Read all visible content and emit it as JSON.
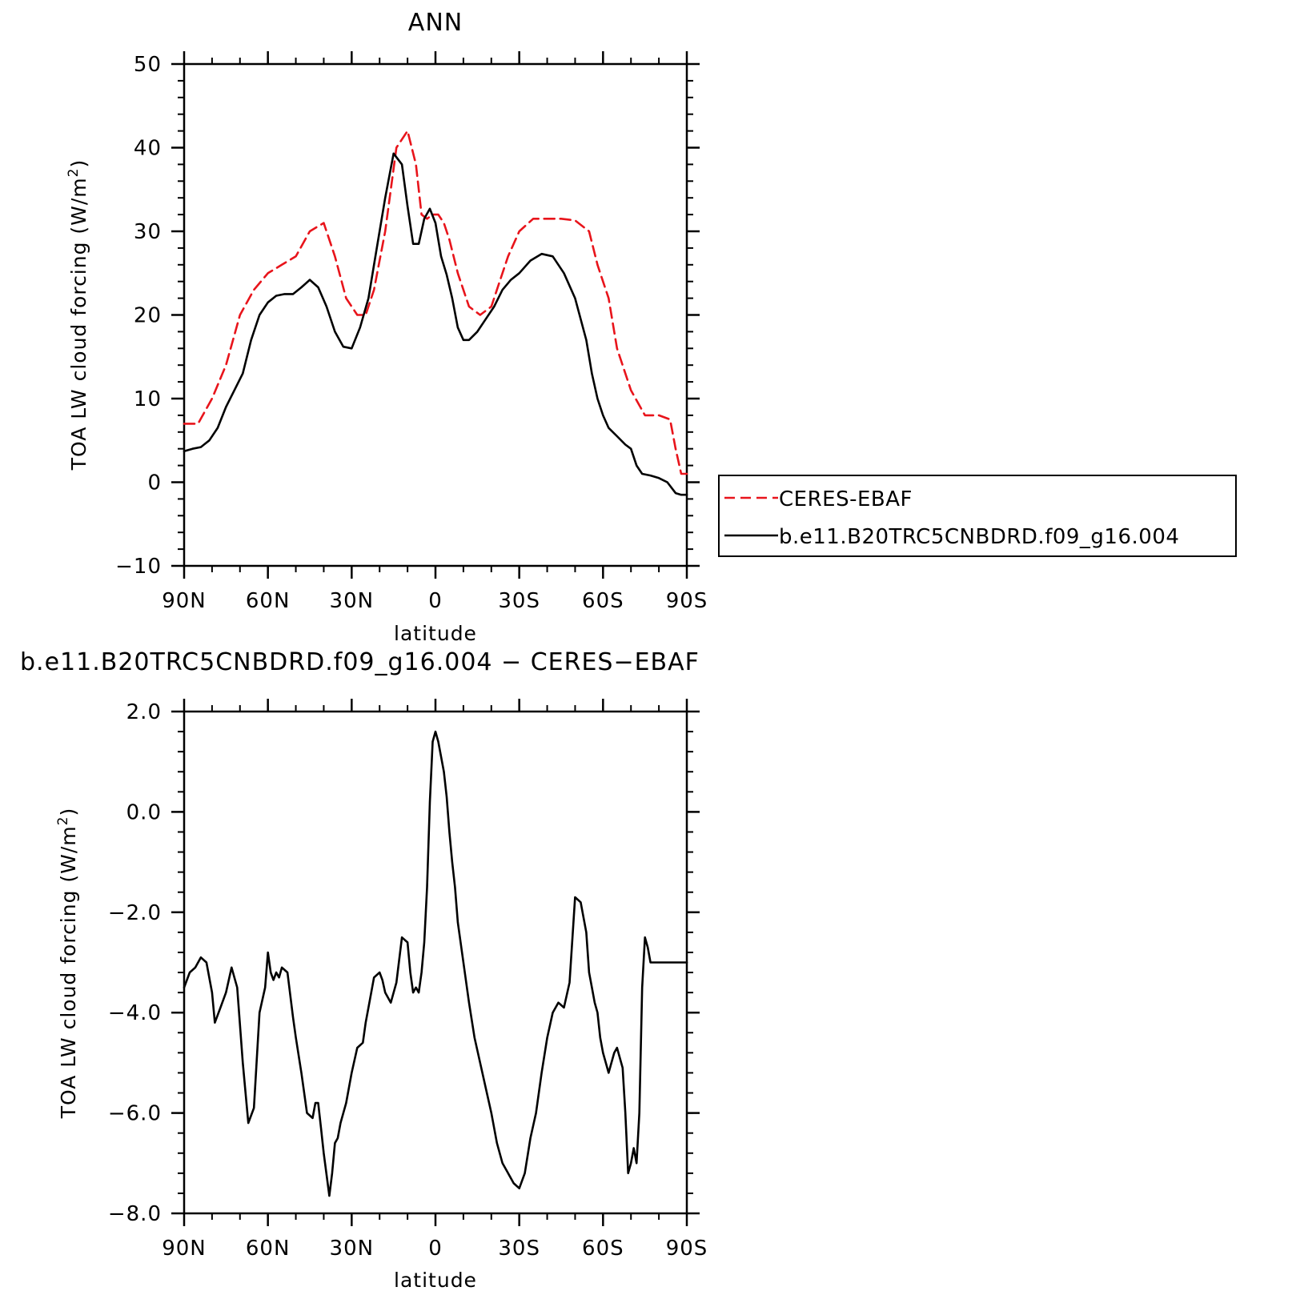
{
  "chart_data": [
    {
      "type": "line",
      "title": "ANN",
      "xlabel": "latitude",
      "ylabel": "TOA LW cloud forcing (W/m²)",
      "ylabel_parts": {
        "base": "TOA LW cloud forcing (W/m",
        "sup": "2",
        "end": ")"
      },
      "xlim": [
        90,
        -90
      ],
      "ylim": [
        -10,
        50
      ],
      "x_ticks": [
        {
          "value": 90,
          "label": "90N"
        },
        {
          "value": 60,
          "label": "60N"
        },
        {
          "value": 30,
          "label": "30N"
        },
        {
          "value": 0,
          "label": "0"
        },
        {
          "value": -30,
          "label": "30S"
        },
        {
          "value": -60,
          "label": "60S"
        },
        {
          "value": -90,
          "label": "90S"
        }
      ],
      "x_minor_step": 10,
      "y_ticks": [
        {
          "value": 50,
          "label": "50"
        },
        {
          "value": 40,
          "label": "40"
        },
        {
          "value": 30,
          "label": "30"
        },
        {
          "value": 20,
          "label": "20"
        },
        {
          "value": 10,
          "label": "10"
        },
        {
          "value": 0,
          "label": "0"
        },
        {
          "value": -10,
          "label": "−10"
        }
      ],
      "y_minor_step": 2,
      "grid": false,
      "legend_position": "right, outside the plot",
      "series": [
        {
          "name": "CERES-EBAF",
          "color": "#e8141b",
          "dash": "dashed",
          "x": [
            90,
            85,
            80,
            75,
            70,
            65,
            60,
            55,
            50,
            45,
            40,
            36,
            32,
            28,
            25,
            22,
            18,
            14,
            10,
            7,
            5,
            3,
            1,
            -1,
            -3,
            -5,
            -8,
            -12,
            -16,
            -20,
            -23,
            -26,
            -30,
            -35,
            -40,
            -45,
            -50,
            -55,
            -58,
            -60,
            -62,
            -65,
            -70,
            -75,
            -80,
            -84,
            -86,
            -88,
            -90
          ],
          "y": [
            7,
            7,
            10,
            14,
            20,
            23,
            25,
            26,
            27,
            30,
            31,
            27,
            22,
            20,
            20,
            23,
            30,
            40,
            42,
            38,
            32,
            31.5,
            32,
            32,
            31,
            29,
            25,
            21,
            20,
            21,
            24,
            27,
            30,
            31.5,
            31.5,
            31.5,
            31.3,
            30,
            26,
            24,
            22,
            16,
            11,
            8,
            8,
            7.5,
            4,
            1,
            1
          ]
        },
        {
          "name": "b.e11.B20TRC5CNBDRD.f09_g16.004",
          "color": "#000000",
          "dash": "solid",
          "x": [
            90,
            87,
            84,
            81,
            78,
            75,
            72,
            69,
            66,
            63,
            60,
            57,
            54,
            51,
            48,
            45,
            42,
            39,
            36,
            33,
            30,
            27,
            24,
            21,
            18,
            15,
            12,
            10,
            8,
            6,
            4,
            2,
            0,
            -2,
            -4,
            -6,
            -8,
            -10,
            -12,
            -15,
            -18,
            -21,
            -24,
            -27,
            -30,
            -34,
            -38,
            -42,
            -46,
            -50,
            -54,
            -56,
            -58,
            -60,
            -62,
            -65,
            -68,
            -70,
            -72,
            -74,
            -77,
            -80,
            -83,
            -86,
            -88,
            -90
          ],
          "y": [
            3.7,
            4,
            4.2,
            5,
            6.5,
            9,
            11,
            13,
            17,
            20,
            21.5,
            22.3,
            22.5,
            22.5,
            23.3,
            24.2,
            23.3,
            21,
            18,
            16.2,
            16,
            18.5,
            22,
            28,
            34,
            39.3,
            38,
            33,
            28.5,
            28.5,
            31.5,
            32.7,
            31,
            27,
            24.8,
            22,
            18.5,
            17,
            17,
            18,
            19.5,
            21,
            23,
            24.2,
            25,
            26.5,
            27.3,
            27,
            25,
            22,
            17,
            13,
            10,
            8,
            6.5,
            5.5,
            4.5,
            4,
            2,
            1,
            0.8,
            0.5,
            0,
            -1.3,
            -1.5,
            -1.5
          ]
        }
      ]
    },
    {
      "type": "line",
      "title": "b.e11.B20TRC5CNBDRD.f09_g16.004 − CERES−EBAF",
      "xlabel": "latitude",
      "ylabel": "TOA LW cloud forcing (W/m²)",
      "ylabel_parts": {
        "base": "TOA LW cloud forcing (W/m",
        "sup": "2",
        "end": ")"
      },
      "xlim": [
        90,
        -90
      ],
      "ylim": [
        -8,
        2
      ],
      "x_ticks": [
        {
          "value": 90,
          "label": "90N"
        },
        {
          "value": 60,
          "label": "60N"
        },
        {
          "value": 30,
          "label": "30N"
        },
        {
          "value": 0,
          "label": "0"
        },
        {
          "value": -30,
          "label": "30S"
        },
        {
          "value": -60,
          "label": "60S"
        },
        {
          "value": -90,
          "label": "90S"
        }
      ],
      "x_minor_step": 10,
      "y_ticks": [
        {
          "value": 2,
          "label": "2.0"
        },
        {
          "value": 0,
          "label": "0.0"
        },
        {
          "value": -2,
          "label": "−2.0"
        },
        {
          "value": -4,
          "label": "−4.0"
        },
        {
          "value": -6,
          "label": "−6.0"
        },
        {
          "value": -8,
          "label": "−8.0"
        }
      ],
      "y_minor_step": 0.4,
      "grid": false,
      "series": [
        {
          "color": "#000000",
          "dash": "solid",
          "x": [
            90,
            88,
            86,
            84,
            82,
            80,
            79,
            77,
            75,
            73,
            71,
            69,
            67,
            65,
            63,
            61,
            60,
            59,
            58,
            57,
            56,
            55,
            54,
            53,
            51,
            50,
            48,
            46,
            44,
            43,
            42,
            41,
            40,
            38,
            37,
            36,
            35,
            34,
            32,
            30,
            28,
            26,
            25,
            24,
            22,
            20,
            19,
            18,
            16,
            14,
            12,
            10,
            9,
            8,
            7,
            6,
            5,
            4,
            3,
            2,
            1,
            0,
            -1,
            -2,
            -3,
            -4,
            -5,
            -6,
            -7,
            -8,
            -10,
            -12,
            -14,
            -16,
            -18,
            -20,
            -22,
            -24,
            -26,
            -28,
            -30,
            -32,
            -34,
            -36,
            -38,
            -40,
            -42,
            -44,
            -46,
            -48,
            -50,
            -52,
            -54,
            -55,
            -56,
            -57,
            -58,
            -59,
            -60,
            -61,
            -62,
            -64,
            -65,
            -67,
            -68,
            -69,
            -70,
            -71,
            -72,
            -73,
            -74,
            -75,
            -76,
            -77,
            -78,
            -79,
            -80,
            -81,
            -82,
            -83,
            -84,
            -85,
            -86,
            -87,
            -88,
            -89,
            -90
          ],
          "y": [
            -3.5,
            -3.2,
            -3.1,
            -2.9,
            -3.0,
            -3.6,
            -4.2,
            -3.9,
            -3.6,
            -3.1,
            -3.5,
            -5.0,
            -6.2,
            -5.9,
            -4.0,
            -3.5,
            -2.8,
            -3.2,
            -3.35,
            -3.2,
            -3.3,
            -3.1,
            -3.15,
            -3.2,
            -4.1,
            -4.5,
            -5.2,
            -6.0,
            -6.1,
            -5.8,
            -5.8,
            -6.3,
            -6.8,
            -7.65,
            -7.2,
            -6.6,
            -6.5,
            -6.2,
            -5.8,
            -5.2,
            -4.7,
            -4.6,
            -4.2,
            -3.9,
            -3.3,
            -3.2,
            -3.35,
            -3.6,
            -3.8,
            -3.4,
            -2.5,
            -2.6,
            -3.2,
            -3.6,
            -3.5,
            -3.6,
            -3.2,
            -2.6,
            -1.5,
            0.2,
            1.4,
            1.6,
            1.4,
            1.1,
            0.8,
            0.3,
            -0.4,
            -1.0,
            -1.5,
            -2.2,
            -3.0,
            -3.8,
            -4.5,
            -5.0,
            -5.5,
            -6.0,
            -6.6,
            -7.0,
            -7.2,
            -7.4,
            -7.5,
            -7.2,
            -6.5,
            -6.0,
            -5.2,
            -4.5,
            -4.0,
            -3.8,
            -3.9,
            -3.4,
            -1.7,
            -1.8,
            -2.4,
            -3.2,
            -3.5,
            -3.8,
            -4.0,
            -4.5,
            -4.8,
            -5.0,
            -5.2,
            -4.8,
            -4.7,
            -5.1,
            -6.0,
            -7.2,
            -7.0,
            -6.7,
            -7.0,
            -6.0,
            -3.5,
            -2.5,
            -2.7,
            -3.0,
            -3.0,
            -3.0,
            -3.0,
            -3.0,
            -3.0,
            -3.0,
            -3.0,
            -3.0,
            -3.0,
            -3.0,
            -3.0,
            -3.0,
            -3.0
          ]
        }
      ]
    }
  ]
}
